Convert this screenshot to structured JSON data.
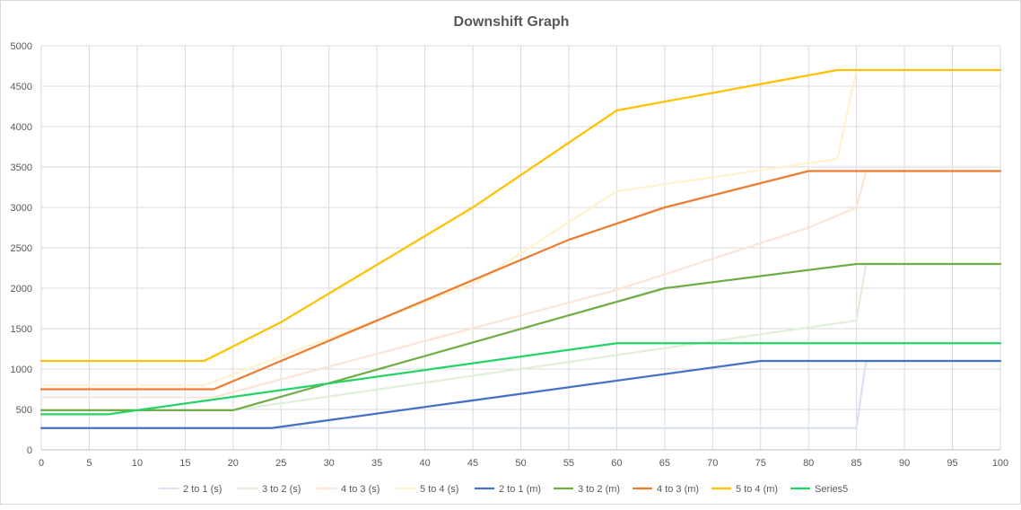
{
  "chart_data": {
    "type": "line",
    "title": "Downshift Graph",
    "xlabel": "",
    "ylabel": "",
    "xlim": [
      0,
      100
    ],
    "ylim": [
      0,
      5000
    ],
    "x_ticks": [
      0,
      5,
      10,
      15,
      20,
      25,
      30,
      35,
      40,
      45,
      50,
      55,
      60,
      65,
      70,
      75,
      80,
      85,
      90,
      95,
      100
    ],
    "y_ticks": [
      0,
      500,
      1000,
      1500,
      2000,
      2500,
      3000,
      3500,
      4000,
      4500,
      5000
    ],
    "grid": true,
    "legend_position": "bottom",
    "series": [
      {
        "name": "2 to 1 (s)",
        "color": "#d9e1f2",
        "points": [
          [
            0,
            270
          ],
          [
            85,
            270
          ],
          [
            86,
            1100
          ],
          [
            100,
            1100
          ]
        ]
      },
      {
        "name": "3 to 2 (s)",
        "color": "#e2efda",
        "points": [
          [
            0,
            490
          ],
          [
            20,
            490
          ],
          [
            85,
            1600
          ],
          [
            86,
            2300
          ],
          [
            100,
            2300
          ]
        ]
      },
      {
        "name": "4 to 3 (s)",
        "color": "#fce4d6",
        "points": [
          [
            0,
            650
          ],
          [
            18,
            650
          ],
          [
            60,
            1980
          ],
          [
            80,
            2750
          ],
          [
            85,
            3000
          ],
          [
            86,
            3450
          ],
          [
            100,
            3450
          ]
        ]
      },
      {
        "name": "5 to 4 (s)",
        "color": "#fff2cc",
        "points": [
          [
            0,
            800
          ],
          [
            17,
            800
          ],
          [
            45,
            2050
          ],
          [
            60,
            3200
          ],
          [
            83,
            3600
          ],
          [
            85,
            4700
          ],
          [
            100,
            4700
          ]
        ]
      },
      {
        "name": "2 to 1 (m)",
        "color": "#4472c4",
        "points": [
          [
            0,
            270
          ],
          [
            24,
            270
          ],
          [
            75,
            1100
          ],
          [
            100,
            1100
          ]
        ]
      },
      {
        "name": "3 to 2 (m)",
        "color": "#70ad47",
        "points": [
          [
            0,
            490
          ],
          [
            20,
            490
          ],
          [
            65,
            2000
          ],
          [
            85,
            2300
          ],
          [
            100,
            2300
          ]
        ]
      },
      {
        "name": "4 to 3 (m)",
        "color": "#ed7d31",
        "points": [
          [
            0,
            750
          ],
          [
            18,
            750
          ],
          [
            55,
            2600
          ],
          [
            65,
            3000
          ],
          [
            80,
            3450
          ],
          [
            100,
            3450
          ]
        ]
      },
      {
        "name": "5 to 4 (m)",
        "color": "#ffc000",
        "points": [
          [
            0,
            1100
          ],
          [
            17,
            1100
          ],
          [
            25,
            1580
          ],
          [
            45,
            3000
          ],
          [
            60,
            4200
          ],
          [
            83,
            4700
          ],
          [
            100,
            4700
          ]
        ]
      },
      {
        "name": "Series5",
        "color": "#22d466",
        "points": [
          [
            0,
            440
          ],
          [
            7,
            440
          ],
          [
            60,
            1320
          ],
          [
            100,
            1320
          ]
        ]
      }
    ]
  }
}
